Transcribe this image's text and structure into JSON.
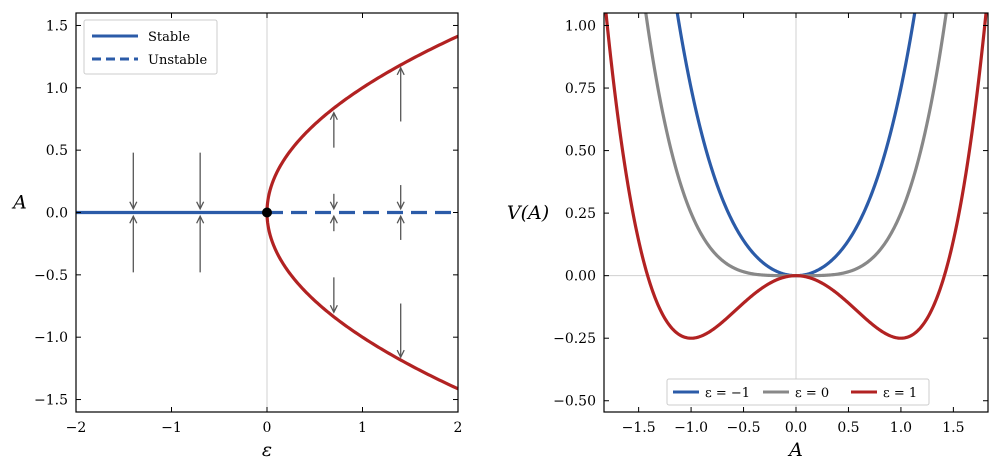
{
  "colors": {
    "stable_blue": "#2b5ba8",
    "unstable_red": "#b22222",
    "neutral_gray": "#888888",
    "arrow_gray": "#555555",
    "guide_line": "#d0d0d0",
    "legend_border": "#cccccc"
  },
  "chart_data": [
    {
      "type": "line",
      "title": "",
      "xlabel": "ε",
      "ylabel": "A",
      "xlim": [
        -2,
        2
      ],
      "ylim": [
        -1.6,
        1.6
      ],
      "xticks": [
        -2,
        -1,
        0,
        1,
        2
      ],
      "xtick_labels": [
        "−2",
        "−1",
        "0",
        "1",
        "2"
      ],
      "yticks": [
        1.5,
        1.0,
        0.5,
        0.0,
        -0.5,
        -1.0,
        -1.5
      ],
      "ytick_labels": [
        "1.5",
        "1.0",
        "0.5",
        "0.0",
        "−0.5",
        "−1.0",
        "−1.5"
      ],
      "grid": false,
      "guide_lines": {
        "x": 0
      },
      "legend": {
        "placement": "top-left",
        "entries": [
          {
            "label": "Stable",
            "style": "solid",
            "color": "#2b5ba8"
          },
          {
            "label": "Unstable",
            "style": "dashed",
            "color": "#2b5ba8"
          }
        ]
      },
      "series": [
        {
          "role": "stable-trivial",
          "style": "solid",
          "color": "#2b5ba8",
          "x": [
            -2,
            0
          ],
          "y": [
            0,
            0
          ]
        },
        {
          "role": "unstable-trivial",
          "style": "dashed",
          "color": "#2b5ba8",
          "x": [
            0,
            2
          ],
          "y": [
            0,
            0
          ]
        },
        {
          "role": "stable-upper-branch",
          "style": "solid",
          "color": "#b22222",
          "curve": "A = sqrt(ε)",
          "x_range": [
            0,
            2
          ]
        },
        {
          "role": "stable-lower-branch",
          "style": "solid",
          "color": "#b22222",
          "curve": "A = -sqrt(ε)",
          "x_range": [
            0,
            2
          ]
        }
      ],
      "bifurcation_point": {
        "x": 0,
        "y": 0
      },
      "flow_arrows": [
        {
          "x": -1.4,
          "from": 0.48,
          "to": 0.03
        },
        {
          "x": -1.4,
          "from": -0.48,
          "to": -0.03
        },
        {
          "x": -0.7,
          "from": 0.48,
          "to": 0.03
        },
        {
          "x": -0.7,
          "from": -0.48,
          "to": -0.03
        },
        {
          "x": 0.7,
          "from": 0.52,
          "to": 0.8
        },
        {
          "x": 0.7,
          "from": 0.15,
          "to": 0.03
        },
        {
          "x": 0.7,
          "from": -0.15,
          "to": -0.03
        },
        {
          "x": 0.7,
          "from": -0.52,
          "to": -0.8
        },
        {
          "x": 1.4,
          "from": 0.73,
          "to": 1.16
        },
        {
          "x": 1.4,
          "from": 0.22,
          "to": 0.03
        },
        {
          "x": 1.4,
          "from": -0.22,
          "to": -0.03
        },
        {
          "x": 1.4,
          "from": -0.73,
          "to": -1.16
        }
      ]
    },
    {
      "type": "line",
      "title": "",
      "xlabel": "A",
      "ylabel": "V(A)",
      "xlim": [
        -1.83,
        1.83
      ],
      "ylim": [
        -0.545,
        1.05
      ],
      "xticks": [
        -1.5,
        -1.0,
        -0.5,
        0.0,
        0.5,
        1.0,
        1.5
      ],
      "xtick_labels": [
        "−1.5",
        "−1.0",
        "−0.5",
        "0.0",
        "0.5",
        "1.0",
        "1.5"
      ],
      "yticks": [
        1.0,
        0.75,
        0.5,
        0.25,
        0.0,
        -0.25,
        -0.5
      ],
      "ytick_labels": [
        "1.00",
        "0.75",
        "0.50",
        "0.25",
        "0.00",
        "−0.25",
        "−0.50"
      ],
      "grid": false,
      "guide_lines": {
        "x": 0,
        "y": 0
      },
      "legend": {
        "placement": "bottom-center",
        "entries": [
          {
            "label": "ε = −1",
            "color": "#2b5ba8"
          },
          {
            "label": "ε = 0",
            "color": "#888888"
          },
          {
            "label": "ε = 1",
            "color": "#b22222"
          }
        ]
      },
      "series": [
        {
          "name": "ε = −1",
          "epsilon": -1,
          "curve": "V = -ε·A²/2 + A⁴/4",
          "color": "#2b5ba8"
        },
        {
          "name": "ε = 0",
          "epsilon": 0,
          "curve": "V = -ε·A²/2 + A⁴/4",
          "color": "#888888"
        },
        {
          "name": "ε = 1",
          "epsilon": 1,
          "curve": "V = -ε·A²/2 + A⁴/4",
          "color": "#b22222"
        }
      ]
    }
  ]
}
